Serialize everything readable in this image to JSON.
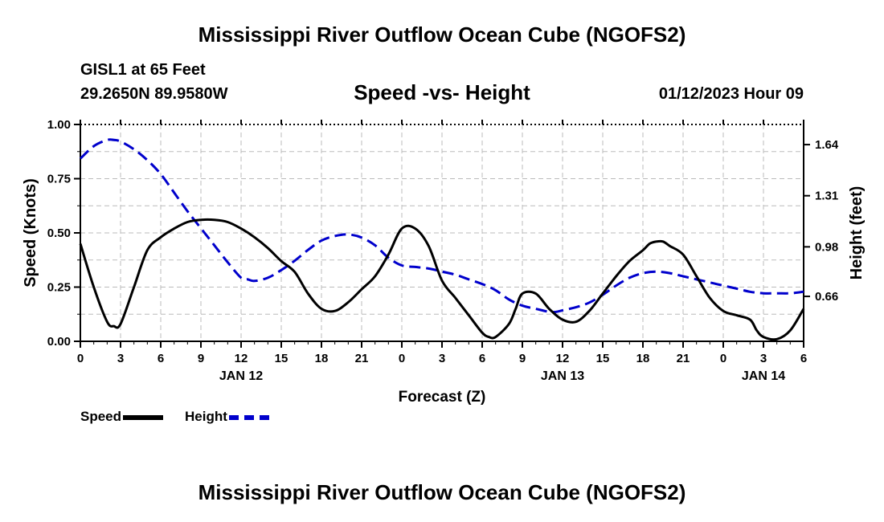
{
  "header": {
    "title": "Mississippi River Outflow Ocean Cube (NGOFS2)",
    "station": "GISL1 at 65 Feet",
    "coords": "29.2650N  89.9580W",
    "subtitle": "Speed -vs- Height",
    "datetime": "01/12/2023 Hour 09"
  },
  "footer": {
    "title": "Mississippi River Outflow Ocean Cube (NGOFS2)"
  },
  "chart_data": {
    "type": "line",
    "xlabel": "Forecast (Z)",
    "ylabel": "Speed (Knots)",
    "y2label": "Height (feet)",
    "xlim": [
      0,
      54
    ],
    "ylim": [
      0,
      1
    ],
    "y2lim": [
      0.37,
      1.77
    ],
    "x_ticks": [
      0,
      3,
      6,
      9,
      12,
      15,
      18,
      21,
      24,
      27,
      30,
      33,
      36,
      39,
      42,
      45,
      48,
      51,
      54
    ],
    "x_tick_labels": [
      "0",
      "3",
      "6",
      "9",
      "12",
      "15",
      "18",
      "21",
      "0",
      "3",
      "6",
      "9",
      "12",
      "15",
      "18",
      "21",
      "0",
      "3",
      "6"
    ],
    "day_labels": [
      {
        "x": 12,
        "text": "JAN 12"
      },
      {
        "x": 36,
        "text": "JAN 13"
      },
      {
        "x": 51,
        "text": "JAN 14"
      }
    ],
    "y_ticks": [
      0,
      0.25,
      0.5,
      0.75,
      1.0
    ],
    "y_tick_labels": [
      "0.00",
      "0.25",
      "0.50",
      "0.75",
      "1.00"
    ],
    "y2_ticks": [
      0.66,
      0.98,
      1.31,
      1.64
    ],
    "y2_tick_labels": [
      "0.66",
      "0.98",
      "1.31",
      "1.64"
    ],
    "grid": true,
    "legend_placement": "bottom-left",
    "series": [
      {
        "name": "Speed",
        "axis": "left",
        "color": "#000000",
        "dash": "solid",
        "x": [
          0,
          1,
          2,
          2.5,
          3,
          4,
          5,
          6,
          7,
          8,
          9,
          10,
          11,
          12,
          13,
          14,
          15,
          16,
          17,
          18,
          19,
          20,
          21,
          22,
          23,
          24,
          25,
          26,
          27,
          28,
          29,
          30,
          30.5,
          31,
          32,
          32.5,
          33,
          34,
          35,
          36,
          37,
          38,
          39,
          40,
          41,
          42,
          42.5,
          43,
          43.5,
          44,
          45,
          46,
          47,
          48,
          49,
          50,
          50.5,
          51,
          52,
          53,
          54
        ],
        "values": [
          0.45,
          0.25,
          0.09,
          0.07,
          0.08,
          0.25,
          0.42,
          0.48,
          0.52,
          0.55,
          0.56,
          0.56,
          0.55,
          0.52,
          0.48,
          0.43,
          0.37,
          0.32,
          0.22,
          0.15,
          0.14,
          0.18,
          0.24,
          0.3,
          0.4,
          0.52,
          0.52,
          0.44,
          0.28,
          0.2,
          0.12,
          0.04,
          0.02,
          0.02,
          0.08,
          0.15,
          0.22,
          0.22,
          0.15,
          0.1,
          0.09,
          0.14,
          0.22,
          0.3,
          0.37,
          0.42,
          0.45,
          0.46,
          0.46,
          0.44,
          0.4,
          0.3,
          0.2,
          0.14,
          0.12,
          0.1,
          0.05,
          0.02,
          0.01,
          0.05,
          0.15
        ]
      },
      {
        "name": "Height",
        "axis": "right",
        "color": "#0000cc",
        "dash": "dashed",
        "x": [
          0,
          1,
          2,
          2.5,
          3,
          4,
          5,
          6,
          7,
          8,
          9,
          10,
          11,
          12,
          12.5,
          13,
          14,
          15,
          16,
          17,
          18,
          19,
          20,
          21,
          22,
          23,
          24,
          25,
          26,
          27,
          28,
          29,
          30,
          31,
          32,
          33,
          34,
          35,
          35.5,
          36,
          37,
          38,
          39,
          40,
          41,
          42,
          43,
          44,
          45,
          46,
          47,
          48,
          49,
          50,
          51,
          52,
          53,
          54
        ],
        "values": [
          1.55,
          1.63,
          1.67,
          1.67,
          1.66,
          1.61,
          1.54,
          1.45,
          1.33,
          1.21,
          1.1,
          0.99,
          0.88,
          0.78,
          0.77,
          0.76,
          0.78,
          0.83,
          0.89,
          0.96,
          1.02,
          1.05,
          1.06,
          1.04,
          0.99,
          0.91,
          0.86,
          0.85,
          0.84,
          0.82,
          0.8,
          0.77,
          0.74,
          0.7,
          0.64,
          0.6,
          0.58,
          0.56,
          0.56,
          0.57,
          0.59,
          0.62,
          0.67,
          0.73,
          0.78,
          0.81,
          0.82,
          0.81,
          0.79,
          0.77,
          0.75,
          0.73,
          0.71,
          0.69,
          0.68,
          0.68,
          0.68,
          0.69
        ]
      }
    ]
  }
}
